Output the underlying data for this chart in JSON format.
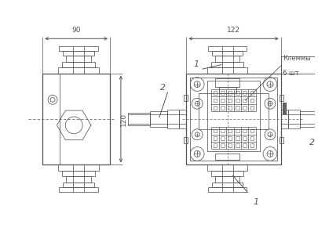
{
  "bg_color": "#ffffff",
  "lc": "#555555",
  "lw": 0.9,
  "lw_t": 0.55,
  "fig_w": 4.05,
  "fig_h": 3.0,
  "dpi": 100,
  "dim_90": "90",
  "dim_122": "122",
  "dim_120": "120",
  "label1": "1",
  "label2": "2",
  "klemmy_text": "Клеммы",
  "klemmy_count": "6 шт"
}
